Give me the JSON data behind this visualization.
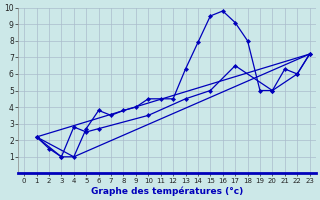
{
  "xlabel": "Graphe des températures (°c)",
  "xlim": [
    -0.5,
    23.5
  ],
  "ylim": [
    0,
    10
  ],
  "xticks": [
    0,
    1,
    2,
    3,
    4,
    5,
    6,
    7,
    8,
    9,
    10,
    11,
    12,
    13,
    14,
    15,
    16,
    17,
    18,
    19,
    20,
    21,
    22,
    23
  ],
  "yticks": [
    1,
    2,
    3,
    4,
    5,
    6,
    7,
    8,
    9,
    10
  ],
  "bg_color": "#cce8e8",
  "line_color": "#0000bb",
  "grid_color": "#aabccc",
  "line1_x": [
    1,
    2,
    3,
    4,
    5,
    6,
    7,
    8,
    9,
    10,
    11,
    12,
    13,
    14,
    15,
    16,
    17,
    18,
    19,
    20,
    21,
    22,
    23
  ],
  "line1_y": [
    2.2,
    1.5,
    1.0,
    1.0,
    2.7,
    3.8,
    3.5,
    3.8,
    4.0,
    4.5,
    4.5,
    4.5,
    6.3,
    7.9,
    9.5,
    9.8,
    9.1,
    8.0,
    5.0,
    5.0,
    6.3,
    6.0,
    7.2
  ],
  "line2_x": [
    1,
    3,
    4,
    5,
    6,
    10,
    13,
    15,
    17,
    20,
    22,
    23
  ],
  "line2_y": [
    2.2,
    1.0,
    2.8,
    2.5,
    2.7,
    3.5,
    4.5,
    5.0,
    6.5,
    5.0,
    6.0,
    7.2
  ],
  "line3_x": [
    1,
    23
  ],
  "line3_y": [
    2.2,
    7.2
  ],
  "line4_x": [
    1,
    4,
    23
  ],
  "line4_y": [
    2.2,
    1.0,
    7.2
  ]
}
